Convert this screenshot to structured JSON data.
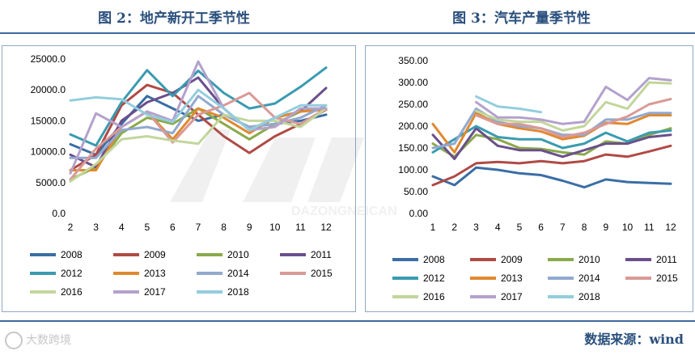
{
  "left_title": "图 2：地产新开工季节性",
  "right_title": "图 3：汽车产量季节性",
  "source": "数据来源：wind",
  "footer_brand": "大数跨境",
  "watermark_text": "DAZONGNEICAN",
  "colors": {
    "2008": "#3a6ea5",
    "2009": "#b04a45",
    "2010": "#8aaa4a",
    "2011": "#6a4f8c",
    "2012": "#3a9bb0",
    "2013": "#e0892f",
    "2014": "#92a9cf",
    "2015": "#d99a96",
    "2016": "#c2d69b",
    "2017": "#b4a1cc",
    "2018": "#93cddd"
  },
  "chart_data": [
    {
      "type": "line",
      "title": "图 2：地产新开工季节性",
      "x": [
        2,
        3,
        4,
        5,
        6,
        7,
        8,
        9,
        10,
        11,
        12
      ],
      "ylim": [
        0,
        25000
      ],
      "yticks": [
        "0.0",
        "5000.0",
        "10000.0",
        "15000.0",
        "20000.0",
        "25000.0"
      ],
      "xticks": [
        "2",
        "3",
        "4",
        "5",
        "6",
        "7",
        "8",
        "9",
        "10",
        "11",
        "12"
      ],
      "legend": "bottom",
      "series": [
        {
          "name": "2008",
          "values": [
            11200,
            9500,
            14500,
            19000,
            17000,
            15000,
            16000,
            14000,
            14500,
            15000,
            16000
          ]
        },
        {
          "name": "2009",
          "values": [
            7000,
            9500,
            17500,
            20800,
            19500,
            16000,
            12500,
            9800,
            12500,
            14500,
            16800
          ]
        },
        {
          "name": "2010",
          "values": [
            5500,
            7500,
            13000,
            15500,
            14500,
            17000,
            14500,
            12000,
            14500,
            16500,
            17000
          ]
        },
        {
          "name": "2011",
          "values": [
            9500,
            7500,
            15000,
            18000,
            19500,
            22000,
            17000,
            13500,
            15500,
            16500,
            20300
          ]
        },
        {
          "name": "2012",
          "values": [
            12800,
            11000,
            18000,
            23200,
            19000,
            23100,
            19500,
            17000,
            17800,
            20500,
            23600
          ]
        },
        {
          "name": "2013",
          "values": [
            7000,
            7000,
            14000,
            16500,
            12000,
            17000,
            15500,
            13000,
            15500,
            16500,
            16800
          ]
        },
        {
          "name": "2014",
          "values": [
            9000,
            9000,
            13500,
            14000,
            13000,
            19000,
            16000,
            14000,
            14500,
            15500,
            17500
          ]
        },
        {
          "name": "2015",
          "values": [
            5500,
            10500,
            14000,
            16500,
            11500,
            16000,
            17500,
            19500,
            15500,
            14500,
            17000
          ]
        },
        {
          "name": "2016",
          "values": [
            5200,
            8000,
            12000,
            12500,
            11800,
            11300,
            16000,
            15000,
            15000,
            14000,
            17000
          ]
        },
        {
          "name": "2017",
          "values": [
            6500,
            16200,
            14000,
            16500,
            15000,
            24600,
            17000,
            13500,
            14000,
            17000,
            17000
          ]
        },
        {
          "name": "2018",
          "values": [
            18300,
            18800,
            18500,
            16000,
            14800,
            20000,
            17000,
            13500,
            15500,
            17500,
            17500
          ]
        }
      ]
    },
    {
      "type": "line",
      "title": "图 3：汽车产量季节性",
      "x": [
        1,
        2,
        3,
        4,
        5,
        6,
        7,
        8,
        9,
        10,
        11,
        12
      ],
      "ylim": [
        0,
        350
      ],
      "yticks": [
        "0.00",
        "50.00",
        "100.00",
        "150.00",
        "200.00",
        "250.00",
        "300.00",
        "350.00"
      ],
      "xticks": [
        "1",
        "2",
        "3",
        "4",
        "5",
        "6",
        "7",
        "8",
        "9",
        "10",
        "11",
        "12"
      ],
      "legend": "bottom",
      "series": [
        {
          "name": "2008",
          "values": [
            85,
            65,
            105,
            100,
            92,
            88,
            75,
            60,
            78,
            72,
            70,
            68
          ]
        },
        {
          "name": "2009",
          "values": [
            65,
            85,
            115,
            118,
            115,
            120,
            115,
            120,
            135,
            130,
            142,
            155
          ]
        },
        {
          "name": "2010",
          "values": [
            160,
            130,
            180,
            170,
            150,
            148,
            140,
            135,
            165,
            160,
            180,
            195
          ]
        },
        {
          "name": "2011",
          "values": [
            180,
            125,
            195,
            155,
            145,
            145,
            130,
            145,
            160,
            160,
            175,
            180
          ]
        },
        {
          "name": "2012",
          "values": [
            140,
            170,
            200,
            175,
            170,
            170,
            150,
            160,
            185,
            165,
            185,
            190
          ]
        },
        {
          "name": "2013",
          "values": [
            205,
            140,
            230,
            205,
            195,
            188,
            170,
            178,
            208,
            205,
            225,
            225
          ]
        },
        {
          "name": "2014",
          "values": [
            150,
            160,
            240,
            210,
            200,
            195,
            180,
            180,
            215,
            215,
            230,
            230
          ]
        },
        {
          "name": "2015",
          "values": [
            null,
            null,
            225,
            205,
            205,
            195,
            175,
            185,
            205,
            222,
            250,
            262
          ]
        },
        {
          "name": "2016",
          "values": [
            null,
            null,
            235,
            215,
            210,
            210,
            190,
            200,
            255,
            240,
            300,
            298
          ]
        },
        {
          "name": "2017",
          "values": [
            null,
            null,
            255,
            220,
            220,
            215,
            205,
            210,
            290,
            260,
            310,
            305
          ]
        },
        {
          "name": "2018",
          "values": [
            null,
            null,
            268,
            245,
            240,
            232,
            null,
            null,
            null,
            null,
            null,
            null
          ]
        }
      ]
    }
  ]
}
